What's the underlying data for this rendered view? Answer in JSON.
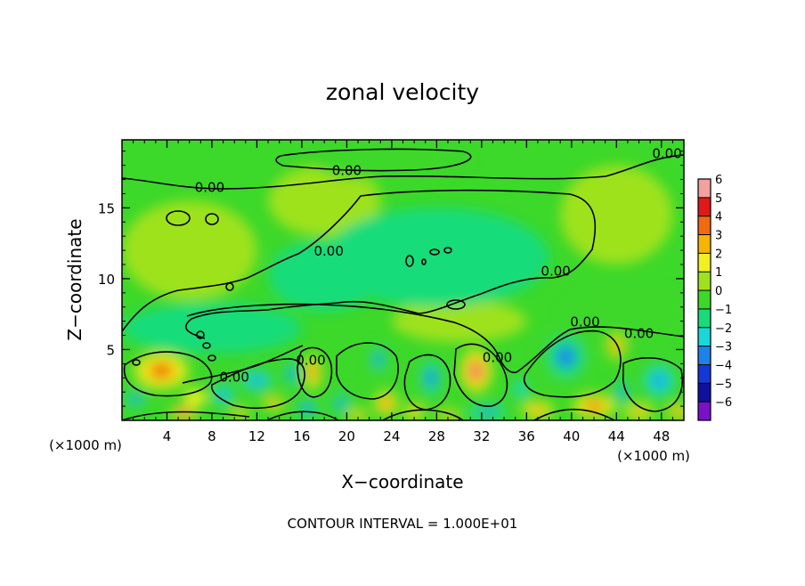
{
  "chart_data": {
    "type": "heatmap",
    "title": "zonal velocity",
    "xlabel": "X−coordinate",
    "ylabel": "Z−coordinate",
    "x_unit_left": "(×1000 m)",
    "x_unit_right": "(×1000 m)",
    "footer": "CONTOUR INTERVAL = 1.000E+01",
    "xlim": [
      0,
      50
    ],
    "ylim": [
      0,
      19.8
    ],
    "x_ticks": [
      4,
      8,
      12,
      16,
      20,
      24,
      28,
      32,
      36,
      40,
      44,
      48
    ],
    "x_tick_labels": [
      "4",
      "8",
      "12",
      "16",
      "20",
      "24",
      "28",
      "32",
      "36",
      "40",
      "44",
      "48"
    ],
    "y_ticks": [
      5,
      10,
      15
    ],
    "y_tick_labels": [
      "5",
      "10",
      "15"
    ],
    "contour_labels": [
      {
        "text": "0.00",
        "x": 20.0,
        "y": 17.7
      },
      {
        "text": "0.00",
        "x": 7.8,
        "y": 16.5
      },
      {
        "text": "0.00",
        "x": 48.5,
        "y": 18.9
      },
      {
        "text": "0.00",
        "x": 18.4,
        "y": 12.0
      },
      {
        "text": "0.00",
        "x": 38.6,
        "y": 10.6
      },
      {
        "text": "0.00",
        "x": 41.2,
        "y": 7.0
      },
      {
        "text": "0.00",
        "x": 46.0,
        "y": 6.2
      },
      {
        "text": "0.00",
        "x": 16.8,
        "y": 4.3
      },
      {
        "text": "0.00",
        "x": 33.4,
        "y": 4.5
      },
      {
        "text": "0.00",
        "x": 10.0,
        "y": 3.1
      }
    ],
    "colorbar": {
      "min": -6,
      "max": 6,
      "tick_labels": [
        "6",
        "5",
        "4",
        "3",
        "2",
        "1",
        "0",
        "−1",
        "−2",
        "−3",
        "−4",
        "−5",
        "−6"
      ],
      "levels": [
        {
          "lo": 5,
          "hi": 6,
          "color": "#f2a0a0"
        },
        {
          "lo": 4,
          "hi": 5,
          "color": "#e01818"
        },
        {
          "lo": 3,
          "hi": 4,
          "color": "#f06a10"
        },
        {
          "lo": 2,
          "hi": 3,
          "color": "#f8b400"
        },
        {
          "lo": 1,
          "hi": 2,
          "color": "#f2f020"
        },
        {
          "lo": 0,
          "hi": 1,
          "color": "#9ee21c"
        },
        {
          "lo": -1,
          "hi": 0,
          "color": "#3cd82a"
        },
        {
          "lo": -2,
          "hi": -1,
          "color": "#18dc7a"
        },
        {
          "lo": -3,
          "hi": -2,
          "color": "#18d8d8"
        },
        {
          "lo": -4,
          "hi": -3,
          "color": "#1e82ec"
        },
        {
          "lo": -5,
          "hi": -4,
          "color": "#1438d8"
        },
        {
          "lo": -6,
          "hi": -5,
          "color": "#1010a0"
        },
        {
          "lo": -7,
          "hi": -6,
          "color": "#7a10c8"
        }
      ]
    },
    "blobs": [
      {
        "x": 3.5,
        "y": 3.5,
        "rx": 2.6,
        "ry": 1.4,
        "value": 4.2
      },
      {
        "x": 5.5,
        "y": 0.5,
        "rx": 1.2,
        "ry": 0.6,
        "value": 6.0
      },
      {
        "x": 1.2,
        "y": 1.5,
        "rx": 1.2,
        "ry": 0.8,
        "value": -3.5
      },
      {
        "x": 6.5,
        "y": 1.6,
        "rx": 1.0,
        "ry": 0.6,
        "value": 1.5
      },
      {
        "x": 9.0,
        "y": 1.8,
        "rx": 1.2,
        "ry": 0.9,
        "value": -4.0
      },
      {
        "x": 12.0,
        "y": 2.8,
        "rx": 1.8,
        "ry": 0.9,
        "value": -4.0
      },
      {
        "x": 13.5,
        "y": 1.2,
        "rx": 1.0,
        "ry": 0.5,
        "value": 4.0
      },
      {
        "x": 10.5,
        "y": 0.5,
        "rx": 1.0,
        "ry": 0.4,
        "value": 3.5
      },
      {
        "x": 15.2,
        "y": 3.3,
        "rx": 0.9,
        "ry": 1.3,
        "value": -3.5
      },
      {
        "x": 17.0,
        "y": 3.4,
        "rx": 0.8,
        "ry": 1.3,
        "value": 4.6
      },
      {
        "x": 16.5,
        "y": 0.8,
        "rx": 1.0,
        "ry": 0.7,
        "value": -5.0
      },
      {
        "x": 19.5,
        "y": 1.2,
        "rx": 1.0,
        "ry": 1.0,
        "value": -3.5
      },
      {
        "x": 22.8,
        "y": 4.3,
        "rx": 0.9,
        "ry": 1.3,
        "value": -3.5
      },
      {
        "x": 23.5,
        "y": 1.2,
        "rx": 1.1,
        "ry": 0.9,
        "value": 4.0
      },
      {
        "x": 21.0,
        "y": 0.4,
        "rx": 1.0,
        "ry": 0.4,
        "value": 3.5
      },
      {
        "x": 27.5,
        "y": 3.0,
        "rx": 1.3,
        "ry": 1.8,
        "value": -3.5
      },
      {
        "x": 26.0,
        "y": 0.6,
        "rx": 1.0,
        "ry": 0.6,
        "value": 3.0
      },
      {
        "x": 29.0,
        "y": 0.4,
        "rx": 1.0,
        "ry": 0.4,
        "value": 4.0
      },
      {
        "x": 31.5,
        "y": 3.5,
        "rx": 1.5,
        "ry": 1.6,
        "value": 5.0
      },
      {
        "x": 32.5,
        "y": 0.6,
        "rx": 2.3,
        "ry": 0.6,
        "value": -4.5
      },
      {
        "x": 35.5,
        "y": 2.2,
        "rx": 1.0,
        "ry": 1.0,
        "value": -3.0
      },
      {
        "x": 37.0,
        "y": 0.7,
        "rx": 1.5,
        "ry": 0.7,
        "value": 3.5
      },
      {
        "x": 39.5,
        "y": 4.5,
        "rx": 2.5,
        "ry": 2.2,
        "value": -3.7
      },
      {
        "x": 42.0,
        "y": 1.0,
        "rx": 2.0,
        "ry": 0.9,
        "value": 4.0
      },
      {
        "x": 44.0,
        "y": 5.2,
        "rx": 0.9,
        "ry": 1.0,
        "value": 2.5
      },
      {
        "x": 44.5,
        "y": 2.0,
        "rx": 0.8,
        "ry": 1.2,
        "value": -3.8
      },
      {
        "x": 47.8,
        "y": 2.8,
        "rx": 1.8,
        "ry": 1.5,
        "value": -4.0
      },
      {
        "x": 46.0,
        "y": 0.6,
        "rx": 1.4,
        "ry": 0.6,
        "value": 3.5
      },
      {
        "x": 49.5,
        "y": 0.6,
        "rx": 1.0,
        "ry": 0.6,
        "value": 4.0
      },
      {
        "x": 18.0,
        "y": 10.2,
        "rx": 5.0,
        "ry": 2.5,
        "value": -1.6
      },
      {
        "x": 28.0,
        "y": 11.5,
        "rx": 10.0,
        "ry": 3.5,
        "value": -1.2
      },
      {
        "x": 8.0,
        "y": 6.5,
        "rx": 8.0,
        "ry": 1.8,
        "value": -1.3
      },
      {
        "x": 45.0,
        "y": 7.5,
        "rx": 6.0,
        "ry": 2.2,
        "value": -1.0
      },
      {
        "x": 30.0,
        "y": 7.0,
        "rx": 6.0,
        "ry": 1.5,
        "value": 0.6
      },
      {
        "x": 6.0,
        "y": 12.0,
        "rx": 6.0,
        "ry": 3.5,
        "value": 0.7
      },
      {
        "x": 44.0,
        "y": 14.5,
        "rx": 5.0,
        "ry": 3.5,
        "value": 0.7
      },
      {
        "x": 24.0,
        "y": 18.2,
        "rx": 7.0,
        "ry": 1.3,
        "value": -0.8
      },
      {
        "x": 18.0,
        "y": 15.5,
        "rx": 5.0,
        "ry": 2.5,
        "value": 0.6
      }
    ],
    "background_value": -0.4
  }
}
